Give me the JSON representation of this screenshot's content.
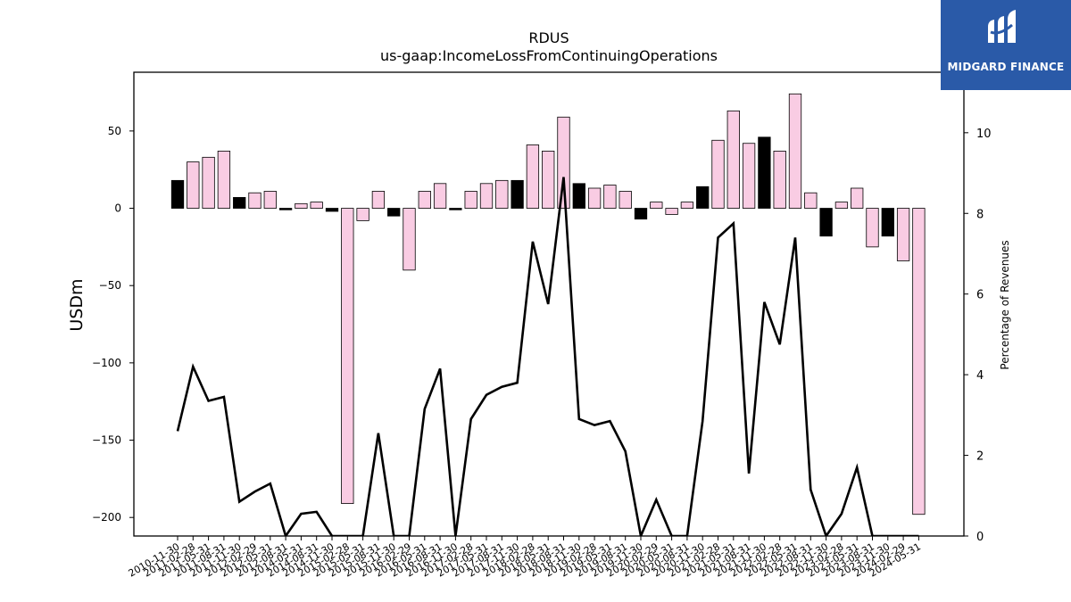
{
  "chart_data": {
    "type": "bar",
    "title": "RDUS",
    "subtitle": "us-gaap:IncomeLossFromContinuingOperations",
    "ylabel": "USDm",
    "y2label": "Percentage of Revenues",
    "ylim": [
      -212,
      88
    ],
    "y2lim": [
      0,
      11.5
    ],
    "yticks": [
      50,
      0,
      -50,
      -100,
      -150,
      -200
    ],
    "y2ticks": [
      0,
      2,
      4,
      6,
      8,
      10
    ],
    "categories": [
      "2010-11-30",
      "2011-02-28",
      "2011-05-31",
      "2011-08-31",
      "2011-11-30",
      "2012-02-29",
      "2012-05-31",
      "2012-08-31",
      "2014-05-31",
      "2014-08-31",
      "2014-11-30",
      "2015-02-28",
      "2015-05-31",
      "2015-08-31",
      "2015-11-30",
      "2016-02-29",
      "2016-05-31",
      "2016-08-31",
      "2016-11-30",
      "2017-02-28",
      "2017-05-31",
      "2017-08-31",
      "2017-11-30",
      "2018-02-28",
      "2018-05-31",
      "2018-08-31",
      "2018-11-30",
      "2019-02-28",
      "2019-05-31",
      "2019-08-31",
      "2019-11-30",
      "2020-02-29",
      "2020-05-31",
      "2020-08-31",
      "2020-11-30",
      "2021-02-28",
      "2021-05-31",
      "2021-08-31",
      "2021-11-30",
      "2022-02-28",
      "2022-05-31",
      "2022-08-31",
      "2022-11-30",
      "2023-02-28",
      "2023-05-31",
      "2023-08-31",
      "2023-11-30",
      "2024-02-29",
      "2024-05-31"
    ],
    "tick_labels": [
      "2010-11-30",
      "2011-02-28",
      "2011-05-31",
      "2011-08-31",
      "2011-11-30",
      "2012-02-29",
      "2012-05-31",
      "2012-08-31",
      "2014-05-31",
      "2014-08-31",
      "2014-11-30",
      "2015-02-28",
      "2015-05-31",
      "2015-08-31",
      "2015-11-30",
      "2016-02-29",
      "2016-05-31",
      "2016-08-31",
      "2016-11-30",
      "2017-02-28",
      "2017-05-31",
      "2017-08-31",
      "2017-11-30",
      "2018-02-28",
      "2018-05-31",
      "2018-08-31",
      "2018-11-30",
      "2019-02-28",
      "2019-05-31",
      "2019-08-31",
      "2019-11-30",
      "2020-02-29",
      "2020-05-31",
      "2020-08-31",
      "2020-11-30",
      "2021-02-28",
      "2021-05-31",
      "2021-08-31",
      "2021-11-30",
      "2022-02-28",
      "2022-05-31",
      "2022-08-31",
      "2022-11-30",
      "2023-02-28",
      "2023-05-31",
      "2023-08-31",
      "2023-11-30",
      "2024-02-29",
      "2024-05-31"
    ],
    "series": [
      {
        "values": [
          18,
          30,
          33,
          37,
          7,
          10,
          11,
          -1,
          3,
          4,
          -2,
          -191,
          -8,
          11,
          -5,
          -40,
          11,
          16,
          -1,
          11,
          16,
          18,
          18,
          41,
          37,
          59,
          16,
          13,
          15,
          11,
          -7,
          4,
          -4,
          4,
          14,
          44,
          63,
          42,
          46,
          37,
          74,
          10,
          -18,
          4,
          13,
          -25,
          -18,
          -34,
          -198
        ],
        "highlight": [
          true,
          false,
          false,
          false,
          true,
          false,
          false,
          true,
          false,
          false,
          true,
          false,
          false,
          false,
          true,
          false,
          false,
          false,
          true,
          false,
          false,
          false,
          true,
          false,
          false,
          false,
          true,
          false,
          false,
          false,
          true,
          false,
          false,
          false,
          true,
          false,
          false,
          false,
          true,
          false,
          false,
          false,
          true,
          false,
          false,
          false,
          true,
          false,
          false
        ],
        "bar_color": "#f9cce3",
        "highlight_color": "#000000"
      },
      {
        "type": "line",
        "axis": "right",
        "color": "#000000",
        "values": [
          2.6,
          4.2,
          3.35,
          3.45,
          0.85,
          1.1,
          1.3,
          0.0,
          0.55,
          0.6,
          0.0,
          0.0,
          0.0,
          2.55,
          0.0,
          0.0,
          3.15,
          4.15,
          0.0,
          2.9,
          3.5,
          3.7,
          3.8,
          7.3,
          5.75,
          8.9,
          2.9,
          2.75,
          2.85,
          2.1,
          0.0,
          0.9,
          0.0,
          0.0,
          2.85,
          7.4,
          7.75,
          1.55,
          5.8,
          4.75,
          7.4,
          1.15,
          0.0,
          0.55,
          1.7,
          0.0,
          0.0,
          0.0,
          0.0
        ]
      }
    ]
  },
  "logo": {
    "text": "MIDGARD FINANCE",
    "bg_color": "#2a5aa8"
  }
}
